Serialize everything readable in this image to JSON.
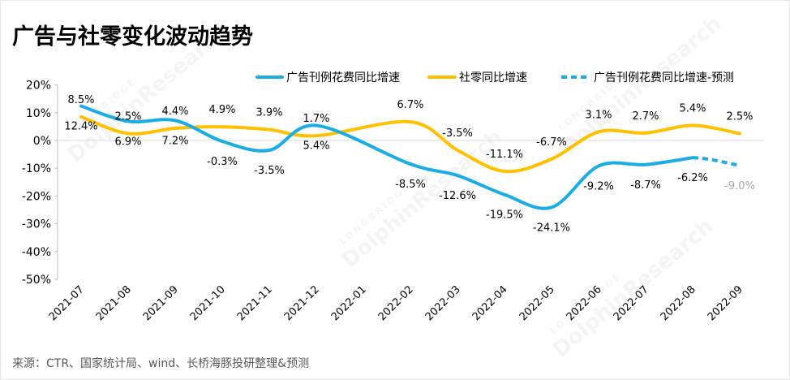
{
  "source": "来源：CTR、国家统计局、wind、长桥海豚投研整理&预测",
  "watermark": {
    "brand": "LONGBRIDGE",
    "name": "DolphinResearch"
  },
  "colors": {
    "axis": "#BFBFBF",
    "zero_line": "#D9D9D9",
    "text": "#000000",
    "forecast_label": "#A6A6A6",
    "source_text": "#595959"
  },
  "chart_data": {
    "type": "line",
    "title": "广告与社零变化波动趋势",
    "categories": [
      "2021-07",
      "2021-08",
      "2021-09",
      "2021-10",
      "2021-11",
      "2021-12",
      "2022-01",
      "2022-02",
      "2022-03",
      "2022-04",
      "2022-05",
      "2022-06",
      "2022-07",
      "2022-08",
      "2022-09"
    ],
    "ylim": [
      -50,
      20
    ],
    "y_ticks": [
      20,
      10,
      0,
      -10,
      -20,
      -30,
      -40,
      -50
    ],
    "y_unit": "%",
    "grid": false,
    "legend": "top",
    "series": [
      {
        "name": "广告刊例花费同比增速",
        "style": "solid",
        "color": "#1AADE4",
        "values": [
          12.4,
          6.9,
          7.2,
          -0.3,
          -3.5,
          5.4,
          null,
          -8.5,
          -12.6,
          -19.5,
          -24.1,
          -9.2,
          -8.7,
          -6.2,
          null
        ]
      },
      {
        "name": "社零同比增速",
        "style": "solid",
        "color": "#FFC000",
        "values": [
          8.5,
          2.5,
          4.4,
          4.9,
          3.9,
          1.7,
          null,
          6.7,
          -3.5,
          -11.1,
          -6.7,
          3.1,
          2.7,
          5.4,
          2.5
        ]
      },
      {
        "name": "广告刊例花费同比增速-预测",
        "style": "dashed",
        "color": "#1AADE4",
        "values": [
          null,
          null,
          null,
          null,
          null,
          null,
          null,
          null,
          null,
          null,
          null,
          null,
          null,
          -6.2,
          -9.0
        ]
      }
    ]
  }
}
